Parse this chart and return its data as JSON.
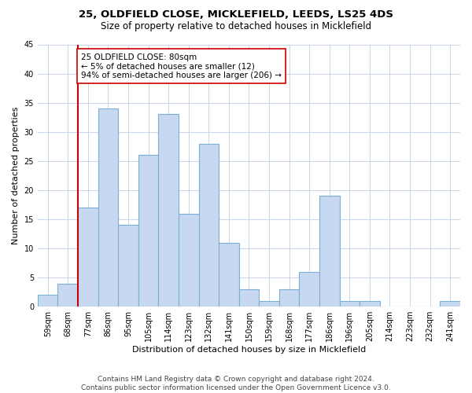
{
  "title": "25, OLDFIELD CLOSE, MICKLEFIELD, LEEDS, LS25 4DS",
  "subtitle": "Size of property relative to detached houses in Micklefield",
  "xlabel": "Distribution of detached houses by size in Micklefield",
  "ylabel": "Number of detached properties",
  "bin_labels": [
    "59sqm",
    "68sqm",
    "77sqm",
    "86sqm",
    "95sqm",
    "105sqm",
    "114sqm",
    "123sqm",
    "132sqm",
    "141sqm",
    "150sqm",
    "159sqm",
    "168sqm",
    "177sqm",
    "186sqm",
    "196sqm",
    "205sqm",
    "214sqm",
    "223sqm",
    "232sqm",
    "241sqm"
  ],
  "bar_heights": [
    2,
    4,
    17,
    34,
    14,
    26,
    33,
    16,
    28,
    11,
    3,
    1,
    3,
    6,
    19,
    1,
    1,
    0,
    0,
    0,
    1
  ],
  "bar_color": "#c6d9f0",
  "bar_edge_color": "#7bafd4",
  "marker_color": "#cc0000",
  "ylim": [
    0,
    45
  ],
  "yticks": [
    0,
    5,
    10,
    15,
    20,
    25,
    30,
    35,
    40,
    45
  ],
  "annotation_text": "25 OLDFIELD CLOSE: 80sqm\n← 5% of detached houses are smaller (12)\n94% of semi-detached houses are larger (206) →",
  "annotation_box_edge": "#cc0000",
  "footer_line1": "Contains HM Land Registry data © Crown copyright and database right 2024.",
  "footer_line2": "Contains public sector information licensed under the Open Government Licence v3.0.",
  "background_color": "#ffffff",
  "grid_color": "#c0d0e8",
  "title_fontsize": 9.5,
  "subtitle_fontsize": 8.5,
  "axis_label_fontsize": 8,
  "tick_fontsize": 7,
  "annotation_fontsize": 7.5,
  "footer_fontsize": 6.5
}
